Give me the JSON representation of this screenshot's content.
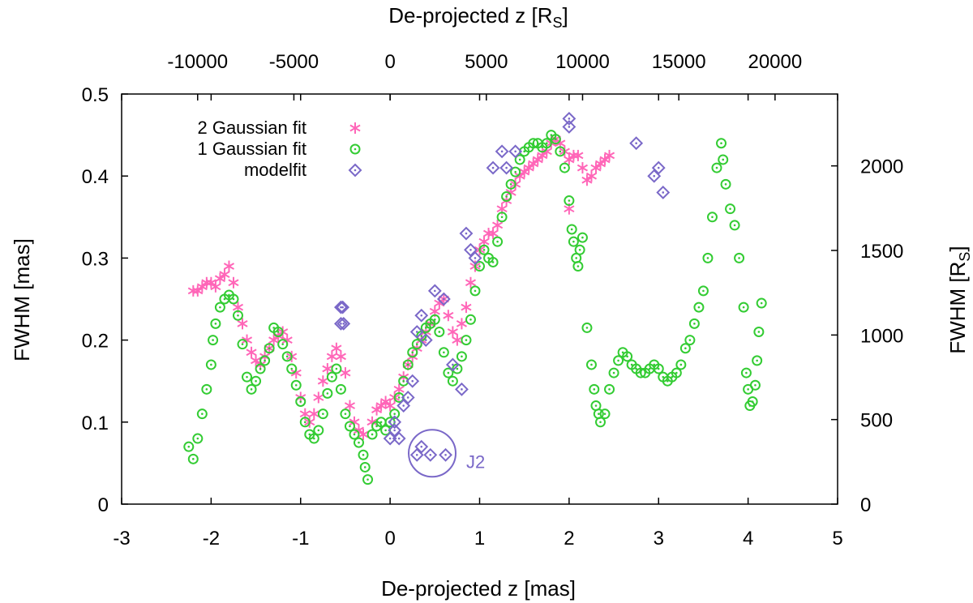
{
  "chart_data": {
    "type": "scatter",
    "xlabel_main": "De-projected z [mas]",
    "xlabel_top_main": "De-projected z [R",
    "xlabel_top_sub": "S",
    "xlabel_top_end": "]",
    "ylabel": "FWHM [mas]",
    "ylabel_right_main": "FWHM [R",
    "ylabel_right_sub": "S",
    "ylabel_right_end": "]",
    "xlim": [
      -3,
      5
    ],
    "ylim": [
      0,
      0.5
    ],
    "x_ticks": [
      -3,
      -2,
      -1,
      0,
      1,
      2,
      3,
      4,
      5
    ],
    "x_tick_labels": [
      "-3",
      "-2",
      "-1",
      "0",
      "1",
      "2",
      "3",
      "4",
      "5"
    ],
    "y_ticks": [
      0,
      0.1,
      0.2,
      0.3,
      0.4,
      0.5
    ],
    "y_tick_labels": [
      "0",
      "0.1",
      "0.2",
      "0.3",
      "0.4",
      "0.5"
    ],
    "x_top_ticks": [
      -10000,
      -5000,
      0,
      5000,
      10000,
      15000,
      20000
    ],
    "x_top_tick_labels": [
      "-10000",
      "-5000",
      "0",
      "5000",
      "10000",
      "15000",
      "20000"
    ],
    "rs_per_mas_x": 4650,
    "y_right_ticks": [
      0,
      500,
      1000,
      1500,
      2000
    ],
    "y_right_tick_labels": [
      "0",
      "500",
      "1000",
      "1500",
      "2000"
    ],
    "rs_per_mas_y": 4850,
    "legend": [
      {
        "label": "2 Gaussian fit",
        "marker": "asterisk",
        "color": "#ff66b8"
      },
      {
        "label": "1 Gaussian fit",
        "marker": "circle",
        "color": "#33cc33"
      },
      {
        "label": "modelfit",
        "marker": "diamond",
        "color": "#7a68c8"
      }
    ],
    "annotation": {
      "text": "J2",
      "x": 0.47,
      "y": 0.062,
      "color": "#7a68c8"
    },
    "series": [
      {
        "name": "2 Gaussian fit",
        "marker": "asterisk",
        "color": "#ff66b8",
        "points": [
          [
            -2.2,
            0.26
          ],
          [
            -2.15,
            0.26
          ],
          [
            -2.1,
            0.265
          ],
          [
            -2.05,
            0.27
          ],
          [
            -2.0,
            0.27
          ],
          [
            -1.95,
            0.265
          ],
          [
            -1.9,
            0.275
          ],
          [
            -1.85,
            0.28
          ],
          [
            -1.8,
            0.29
          ],
          [
            -1.75,
            0.27
          ],
          [
            -1.7,
            0.24
          ],
          [
            -1.65,
            0.22
          ],
          [
            -1.6,
            0.2
          ],
          [
            -1.55,
            0.185
          ],
          [
            -1.5,
            0.175
          ],
          [
            -1.45,
            0.17
          ],
          [
            -1.4,
            0.18
          ],
          [
            -1.35,
            0.19
          ],
          [
            -1.3,
            0.2
          ],
          [
            -1.25,
            0.205
          ],
          [
            -1.2,
            0.21
          ],
          [
            -1.15,
            0.2
          ],
          [
            -1.1,
            0.18
          ],
          [
            -1.05,
            0.16
          ],
          [
            -1.0,
            0.13
          ],
          [
            -0.95,
            0.11
          ],
          [
            -0.9,
            0.1
          ],
          [
            -0.85,
            0.11
          ],
          [
            -0.8,
            0.13
          ],
          [
            -0.75,
            0.15
          ],
          [
            -0.7,
            0.165
          ],
          [
            -0.65,
            0.18
          ],
          [
            -0.6,
            0.19
          ],
          [
            -0.55,
            0.18
          ],
          [
            -0.5,
            0.16
          ],
          [
            -0.45,
            0.12
          ],
          [
            -0.4,
            0.1
          ],
          [
            -0.35,
            0.09
          ],
          [
            -0.3,
            0.085
          ],
          [
            -0.2,
            0.1
          ],
          [
            -0.15,
            0.115
          ],
          [
            -0.1,
            0.12
          ],
          [
            -0.05,
            0.125
          ],
          [
            0.0,
            0.12
          ],
          [
            0.05,
            0.13
          ],
          [
            0.1,
            0.14
          ],
          [
            0.15,
            0.155
          ],
          [
            0.2,
            0.17
          ],
          [
            0.25,
            0.18
          ],
          [
            0.3,
            0.19
          ],
          [
            0.35,
            0.2
          ],
          [
            0.4,
            0.21
          ],
          [
            0.45,
            0.22
          ],
          [
            0.5,
            0.235
          ],
          [
            0.55,
            0.245
          ],
          [
            0.6,
            0.25
          ],
          [
            0.65,
            0.23
          ],
          [
            0.7,
            0.21
          ],
          [
            0.75,
            0.2
          ],
          [
            0.8,
            0.22
          ],
          [
            0.85,
            0.24
          ],
          [
            0.9,
            0.27
          ],
          [
            0.95,
            0.29
          ],
          [
            1.0,
            0.31
          ],
          [
            1.05,
            0.32
          ],
          [
            1.1,
            0.33
          ],
          [
            1.15,
            0.33
          ],
          [
            1.2,
            0.34
          ],
          [
            1.25,
            0.36
          ],
          [
            1.3,
            0.37
          ],
          [
            1.35,
            0.38
          ],
          [
            1.4,
            0.39
          ],
          [
            1.45,
            0.4
          ],
          [
            1.5,
            0.405
          ],
          [
            1.55,
            0.41
          ],
          [
            1.6,
            0.415
          ],
          [
            1.65,
            0.42
          ],
          [
            1.7,
            0.425
          ],
          [
            1.75,
            0.43
          ],
          [
            1.8,
            0.44
          ],
          [
            1.85,
            0.445
          ],
          [
            1.9,
            0.44
          ],
          [
            1.95,
            0.43
          ],
          [
            2.0,
            0.42
          ],
          [
            2.05,
            0.425
          ],
          [
            2.1,
            0.425
          ],
          [
            2.15,
            0.41
          ],
          [
            2.2,
            0.395
          ],
          [
            2.25,
            0.4
          ],
          [
            2.3,
            0.41
          ],
          [
            2.35,
            0.415
          ],
          [
            2.4,
            0.42
          ],
          [
            2.45,
            0.425
          ],
          [
            2.0,
            0.36
          ]
        ]
      },
      {
        "name": "1 Gaussian fit",
        "marker": "circle",
        "color": "#33cc33",
        "points": [
          [
            -2.25,
            0.07
          ],
          [
            -2.2,
            0.055
          ],
          [
            -2.15,
            0.08
          ],
          [
            -2.1,
            0.11
          ],
          [
            -2.05,
            0.14
          ],
          [
            -2.0,
            0.17
          ],
          [
            -1.98,
            0.2
          ],
          [
            -1.95,
            0.22
          ],
          [
            -1.9,
            0.24
          ],
          [
            -1.85,
            0.25
          ],
          [
            -1.8,
            0.255
          ],
          [
            -1.75,
            0.25
          ],
          [
            -1.7,
            0.23
          ],
          [
            -1.65,
            0.195
          ],
          [
            -1.6,
            0.155
          ],
          [
            -1.55,
            0.14
          ],
          [
            -1.5,
            0.15
          ],
          [
            -1.45,
            0.165
          ],
          [
            -1.4,
            0.175
          ],
          [
            -1.35,
            0.19
          ],
          [
            -1.3,
            0.215
          ],
          [
            -1.25,
            0.21
          ],
          [
            -1.2,
            0.195
          ],
          [
            -1.15,
            0.18
          ],
          [
            -1.1,
            0.165
          ],
          [
            -1.05,
            0.145
          ],
          [
            -1.0,
            0.125
          ],
          [
            -0.95,
            0.1
          ],
          [
            -0.9,
            0.085
          ],
          [
            -0.85,
            0.08
          ],
          [
            -0.8,
            0.09
          ],
          [
            -0.75,
            0.11
          ],
          [
            -0.7,
            0.135
          ],
          [
            -0.65,
            0.155
          ],
          [
            -0.6,
            0.165
          ],
          [
            -0.55,
            0.14
          ],
          [
            -0.5,
            0.11
          ],
          [
            -0.45,
            0.095
          ],
          [
            -0.4,
            0.085
          ],
          [
            -0.35,
            0.075
          ],
          [
            -0.3,
            0.06
          ],
          [
            -0.28,
            0.045
          ],
          [
            -0.25,
            0.03
          ],
          [
            -0.2,
            0.085
          ],
          [
            -0.15,
            0.095
          ],
          [
            -0.1,
            0.1
          ],
          [
            -0.05,
            0.09
          ],
          [
            0.0,
            0.1
          ],
          [
            0.05,
            0.11
          ],
          [
            0.1,
            0.13
          ],
          [
            0.15,
            0.15
          ],
          [
            0.2,
            0.17
          ],
          [
            0.25,
            0.185
          ],
          [
            0.3,
            0.195
          ],
          [
            0.35,
            0.205
          ],
          [
            0.4,
            0.215
          ],
          [
            0.45,
            0.22
          ],
          [
            0.5,
            0.225
          ],
          [
            0.55,
            0.21
          ],
          [
            0.6,
            0.185
          ],
          [
            0.65,
            0.16
          ],
          [
            0.7,
            0.15
          ],
          [
            0.75,
            0.165
          ],
          [
            0.8,
            0.18
          ],
          [
            0.85,
            0.2
          ],
          [
            0.9,
            0.225
          ],
          [
            0.95,
            0.26
          ],
          [
            1.0,
            0.29
          ],
          [
            1.05,
            0.31
          ],
          [
            1.1,
            0.3
          ],
          [
            1.15,
            0.295
          ],
          [
            1.2,
            0.32
          ],
          [
            1.25,
            0.35
          ],
          [
            1.3,
            0.375
          ],
          [
            1.35,
            0.39
          ],
          [
            1.4,
            0.405
          ],
          [
            1.45,
            0.42
          ],
          [
            1.5,
            0.43
          ],
          [
            1.55,
            0.435
          ],
          [
            1.6,
            0.44
          ],
          [
            1.65,
            0.44
          ],
          [
            1.7,
            0.435
          ],
          [
            1.75,
            0.44
          ],
          [
            1.8,
            0.45
          ],
          [
            1.85,
            0.445
          ],
          [
            1.9,
            0.43
          ],
          [
            1.95,
            0.41
          ],
          [
            2.0,
            0.37
          ],
          [
            2.03,
            0.335
          ],
          [
            2.05,
            0.32
          ],
          [
            2.08,
            0.3
          ],
          [
            2.1,
            0.29
          ],
          [
            2.12,
            0.31
          ],
          [
            2.15,
            0.325
          ],
          [
            2.2,
            0.215
          ],
          [
            2.25,
            0.17
          ],
          [
            2.28,
            0.14
          ],
          [
            2.3,
            0.12
          ],
          [
            2.33,
            0.11
          ],
          [
            2.35,
            0.1
          ],
          [
            2.4,
            0.11
          ],
          [
            2.45,
            0.14
          ],
          [
            2.5,
            0.16
          ],
          [
            2.55,
            0.175
          ],
          [
            2.6,
            0.185
          ],
          [
            2.65,
            0.18
          ],
          [
            2.7,
            0.17
          ],
          [
            2.75,
            0.165
          ],
          [
            2.8,
            0.16
          ],
          [
            2.85,
            0.16
          ],
          [
            2.9,
            0.165
          ],
          [
            2.95,
            0.17
          ],
          [
            3.0,
            0.165
          ],
          [
            3.05,
            0.155
          ],
          [
            3.1,
            0.15
          ],
          [
            3.15,
            0.155
          ],
          [
            3.2,
            0.16
          ],
          [
            3.25,
            0.17
          ],
          [
            3.3,
            0.19
          ],
          [
            3.35,
            0.2
          ],
          [
            3.4,
            0.22
          ],
          [
            3.45,
            0.24
          ],
          [
            3.5,
            0.26
          ],
          [
            3.55,
            0.3
          ],
          [
            3.6,
            0.35
          ],
          [
            3.65,
            0.41
          ],
          [
            3.7,
            0.44
          ],
          [
            3.72,
            0.42
          ],
          [
            3.75,
            0.39
          ],
          [
            3.8,
            0.36
          ],
          [
            3.85,
            0.34
          ],
          [
            3.9,
            0.3
          ],
          [
            3.95,
            0.24
          ],
          [
            3.98,
            0.16
          ],
          [
            4.0,
            0.14
          ],
          [
            4.02,
            0.12
          ],
          [
            4.05,
            0.125
          ],
          [
            4.08,
            0.145
          ],
          [
            4.1,
            0.175
          ],
          [
            4.12,
            0.21
          ],
          [
            4.15,
            0.245
          ]
        ]
      },
      {
        "name": "modelfit",
        "marker": "diamond",
        "color": "#7a68c8",
        "points": [
          [
            -0.55,
            0.24
          ],
          [
            -0.53,
            0.24
          ],
          [
            -0.55,
            0.22
          ],
          [
            -0.52,
            0.22
          ],
          [
            0.05,
            0.09
          ],
          [
            0.0,
            0.08
          ],
          [
            0.05,
            0.1
          ],
          [
            0.1,
            0.08
          ],
          [
            0.15,
            0.12
          ],
          [
            0.2,
            0.13
          ],
          [
            0.25,
            0.15
          ],
          [
            0.3,
            0.21
          ],
          [
            0.35,
            0.23
          ],
          [
            0.4,
            0.2
          ],
          [
            0.5,
            0.26
          ],
          [
            0.6,
            0.25
          ],
          [
            0.7,
            0.17
          ],
          [
            0.8,
            0.14
          ],
          [
            0.85,
            0.33
          ],
          [
            0.9,
            0.31
          ],
          [
            0.95,
            0.3
          ],
          [
            1.15,
            0.41
          ],
          [
            1.25,
            0.43
          ],
          [
            1.3,
            0.41
          ],
          [
            1.4,
            0.43
          ],
          [
            2.0,
            0.47
          ],
          [
            2.0,
            0.46
          ],
          [
            2.75,
            0.44
          ],
          [
            2.95,
            0.4
          ],
          [
            3.0,
            0.41
          ],
          [
            3.05,
            0.38
          ],
          [
            0.3,
            0.06
          ],
          [
            0.35,
            0.07
          ],
          [
            0.45,
            0.06
          ],
          [
            0.62,
            0.06
          ]
        ]
      }
    ]
  }
}
